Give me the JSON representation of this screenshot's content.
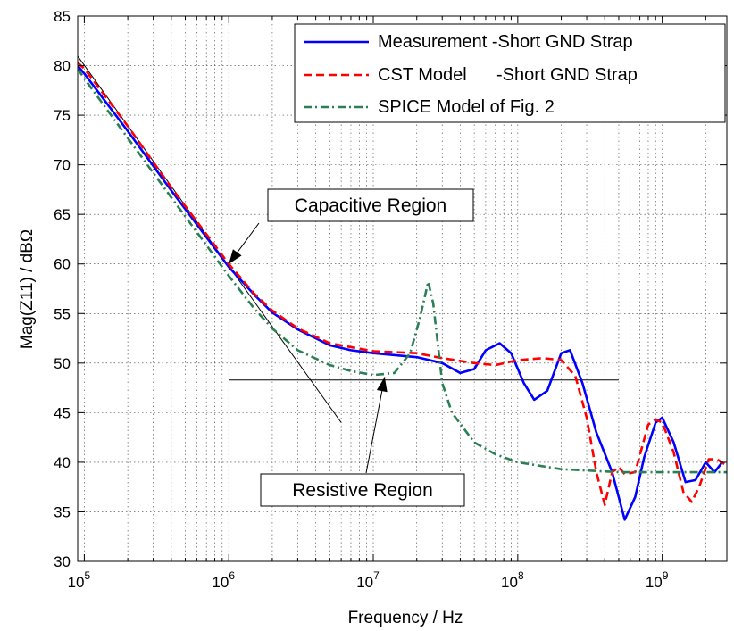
{
  "chart_data": {
    "type": "line",
    "title": "",
    "xlabel": "Frequency / Hz",
    "ylabel": "Mag(Z11) / dBΩ",
    "xscale": "log",
    "xlim": [
      90000,
      2800000000
    ],
    "ylim": [
      30,
      85
    ],
    "grid": true,
    "legend_placement": "top-right",
    "x_ticks": [
      {
        "value": 100000,
        "base": "10",
        "exp": "5"
      },
      {
        "value": 1000000,
        "base": "10",
        "exp": "6"
      },
      {
        "value": 10000000,
        "base": "10",
        "exp": "7"
      },
      {
        "value": 100000000,
        "base": "10",
        "exp": "8"
      },
      {
        "value": 1000000000,
        "base": "10",
        "exp": "9"
      }
    ],
    "y_ticks": [
      30,
      35,
      40,
      45,
      50,
      55,
      60,
      65,
      70,
      75,
      80,
      85
    ],
    "series": [
      {
        "name": "Measurement -Short GND Strap",
        "color": "#0000ff",
        "dash": "solid",
        "points": [
          [
            90000,
            80.0
          ],
          [
            100000,
            79.2
          ],
          [
            200000,
            73.4
          ],
          [
            400000,
            67.4
          ],
          [
            700000,
            62.7
          ],
          [
            1000000,
            59.7
          ],
          [
            1500000,
            56.9
          ],
          [
            2000000,
            55.1
          ],
          [
            3000000,
            53.4
          ],
          [
            5000000,
            51.8
          ],
          [
            7000000,
            51.3
          ],
          [
            10000000,
            51.0
          ],
          [
            20000000,
            50.6
          ],
          [
            30000000,
            50.0
          ],
          [
            40000000,
            49.0
          ],
          [
            50000000,
            49.4
          ],
          [
            60000000,
            51.3
          ],
          [
            75000000,
            52.0
          ],
          [
            90000000,
            51.0
          ],
          [
            110000000,
            48.0
          ],
          [
            130000000,
            46.3
          ],
          [
            160000000,
            47.2
          ],
          [
            200000000,
            51.0
          ],
          [
            230000000,
            51.3
          ],
          [
            280000000,
            48.0
          ],
          [
            350000000,
            43.0
          ],
          [
            450000000,
            39.0
          ],
          [
            550000000,
            34.2
          ],
          [
            650000000,
            36.5
          ],
          [
            750000000,
            40.5
          ],
          [
            900000000,
            44.0
          ],
          [
            1000000000,
            44.5
          ],
          [
            1200000000,
            42.0
          ],
          [
            1450000000,
            38.0
          ],
          [
            1700000000,
            38.2
          ],
          [
            2000000000,
            40.0
          ],
          [
            2300000000,
            39.0
          ],
          [
            2600000000,
            40.0
          ]
        ]
      },
      {
        "name": "CST Model      -Short GND Strap",
        "color": "#ff0000",
        "dash": "dashed",
        "points": [
          [
            90000,
            80.3
          ],
          [
            100000,
            79.7
          ],
          [
            200000,
            73.9
          ],
          [
            400000,
            67.7
          ],
          [
            700000,
            63.0
          ],
          [
            1000000,
            60.0
          ],
          [
            1500000,
            57.0
          ],
          [
            2000000,
            55.3
          ],
          [
            3000000,
            53.5
          ],
          [
            5000000,
            52.0
          ],
          [
            10000000,
            51.2
          ],
          [
            20000000,
            51.0
          ],
          [
            30000000,
            50.5
          ],
          [
            50000000,
            50.0
          ],
          [
            70000000,
            49.8
          ],
          [
            100000000,
            50.3
          ],
          [
            150000000,
            50.5
          ],
          [
            200000000,
            50.3
          ],
          [
            250000000,
            48.7
          ],
          [
            300000000,
            44.5
          ],
          [
            350000000,
            39.0
          ],
          [
            400000000,
            35.7
          ],
          [
            450000000,
            39.0
          ],
          [
            500000000,
            39.5
          ],
          [
            550000000,
            38.8
          ],
          [
            650000000,
            39.0
          ],
          [
            800000000,
            43.8
          ],
          [
            900000000,
            44.3
          ],
          [
            1000000000,
            44.0
          ],
          [
            1200000000,
            41.0
          ],
          [
            1400000000,
            37.0
          ],
          [
            1600000000,
            36.0
          ],
          [
            1800000000,
            37.5
          ],
          [
            2100000000,
            40.3
          ],
          [
            2400000000,
            40.3
          ],
          [
            2700000000,
            39.8
          ]
        ]
      },
      {
        "name": "SPICE Model of Fig. 2",
        "color": "#2a7f55",
        "dash": "dashdot",
        "points": [
          [
            90000,
            79.7
          ],
          [
            100000,
            78.7
          ],
          [
            200000,
            72.7
          ],
          [
            400000,
            66.7
          ],
          [
            700000,
            61.9
          ],
          [
            1000000,
            58.8
          ],
          [
            1500000,
            55.5
          ],
          [
            2000000,
            53.5
          ],
          [
            3000000,
            51.3
          ],
          [
            5000000,
            49.8
          ],
          [
            7000000,
            49.2
          ],
          [
            10000000,
            48.8
          ],
          [
            14000000,
            49.0
          ],
          [
            18000000,
            51.0
          ],
          [
            21000000,
            54.5
          ],
          [
            24000000,
            58.2
          ],
          [
            26000000,
            56.0
          ],
          [
            30000000,
            48.0
          ],
          [
            35000000,
            45.0
          ],
          [
            50000000,
            42.0
          ],
          [
            70000000,
            40.8
          ],
          [
            100000000,
            40.0
          ],
          [
            200000000,
            39.3
          ],
          [
            500000000,
            39.0
          ],
          [
            1000000000,
            39.0
          ],
          [
            2800000000,
            39.0
          ]
        ]
      }
    ],
    "annotations": [
      {
        "text": "Capacitive Region",
        "arrow_to": [
          1000000,
          60
        ]
      },
      {
        "text": "Resistive Region",
        "arrow_to": [
          12000000,
          48.6
        ]
      }
    ],
    "reference_lines": [
      {
        "name": "capacitive-asymptote",
        "from": [
          80000,
          82
        ],
        "to": [
          6000000,
          44
        ]
      },
      {
        "name": "resistive-asymptote",
        "from": [
          1000000,
          48.3
        ],
        "to": [
          500000000,
          48.3
        ]
      }
    ]
  }
}
